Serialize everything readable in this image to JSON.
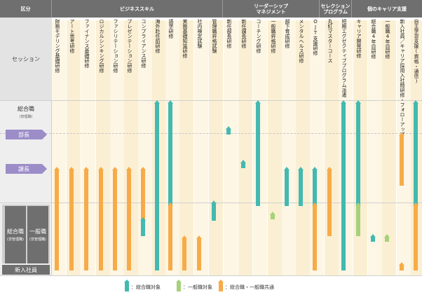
{
  "header": {
    "category": "区分",
    "groups": [
      {
        "id": "business",
        "label": "ビジネススキル"
      },
      {
        "id": "leadership",
        "label": "リーダーシップ\nマネジメント"
      },
      {
        "id": "selection",
        "label": "セレクション\nプログラム"
      },
      {
        "id": "career",
        "label": "個のキャリア支援"
      }
    ]
  },
  "left": {
    "session_label": "セッション",
    "sogo_label": "総合職",
    "sogo_sub": "(管理職)",
    "bucho": "部長",
    "kacho": "課長",
    "sogo_nonmgr": "総合職",
    "sogo_nonmgr_sub": "(非管理職)",
    "ippan": "一般職",
    "ippan_sub": "(非管理職)",
    "shinnyu": "新入社員"
  },
  "courses": [
    {
      "name": "財務モデリング基礎研修",
      "group": "business"
    },
    {
      "name": "アート思考研修",
      "group": "business"
    },
    {
      "name": "ファイナンス基礎研修",
      "group": "business"
    },
    {
      "name": "ロジカルシンキング研修",
      "group": "business"
    },
    {
      "name": "ファシリテーション研修",
      "group": "business"
    },
    {
      "name": "プレゼンテーション研修",
      "group": "business"
    },
    {
      "name": "コンプライアンス研修",
      "group": "business"
    },
    {
      "name": "海外赴任前研修",
      "group": "business"
    },
    {
      "name": "語学研修",
      "group": "business"
    },
    {
      "name": "実務基礎知識研修",
      "group": "business"
    },
    {
      "name": "社内検定試験",
      "group": "business"
    },
    {
      "name": "管理職昇格試験",
      "group": "business"
    },
    {
      "name": "新任部長研修",
      "group": "leadership"
    },
    {
      "name": "新任課長研修",
      "group": "leadership"
    },
    {
      "name": "コーチング研修",
      "group": "leadership"
    },
    {
      "name": "一般職昇格研修",
      "group": "leadership"
    },
    {
      "name": "部下育成研修",
      "group": "leadership"
    },
    {
      "name": "メンタルヘルス研修",
      "group": "leadership"
    },
    {
      "name": "OJT支援研修",
      "group": "leadership"
    },
    {
      "name": "丸紅マスターコース",
      "group": "selection"
    },
    {
      "name": "短期エグゼクティブプログラム派遣",
      "group": "selection"
    },
    {
      "name": "キャリア開発研修",
      "group": "career"
    },
    {
      "name": "総合職4年目研修",
      "group": "career"
    },
    {
      "name": "一般職4年目研修",
      "group": "career"
    },
    {
      "name": "新入社員／キャリア採用入社時研修・フォローアップ",
      "group": "career"
    },
    {
      "name": "自主学習支援(資格・通信)",
      "group": "career"
    }
  ],
  "colors": {
    "teal": "#43b9b0",
    "green": "#a7d17a",
    "orange": "#f7ab48",
    "header_bg": "#6f6f6f",
    "pill": "#9c8dc8"
  },
  "bars": [
    {
      "course": 0,
      "color": "orange",
      "from": "kacho",
      "to": "shinnyu"
    },
    {
      "course": 1,
      "color": "orange",
      "from": "kacho",
      "to": "shinnyu"
    },
    {
      "course": 2,
      "color": "orange",
      "from": "kacho",
      "to": "shinnyu"
    },
    {
      "course": 3,
      "color": "orange",
      "from": "kacho",
      "to": "shinnyu"
    },
    {
      "course": 4,
      "color": "orange",
      "from": "kacho",
      "to": "shinnyu"
    },
    {
      "course": 5,
      "color": "orange",
      "from": "kacho",
      "to": "shinnyu"
    },
    {
      "course": 6,
      "color": "orange",
      "from": "kacho",
      "to": "nonmgr_mid"
    },
    {
      "course": 6,
      "color": "teal",
      "from": "nonmgr_mid",
      "to": "nonmgr_mid2"
    },
    {
      "course": 7,
      "color": "teal",
      "from": "sogo",
      "to": "shinnyu"
    },
    {
      "course": 8,
      "color": "teal",
      "from": "sogo",
      "to": "nonmgr"
    },
    {
      "course": 8,
      "color": "orange",
      "from": "nonmgr",
      "to": "shinnyu"
    },
    {
      "course": 9,
      "color": "orange",
      "from": "nonmgr_low",
      "to": "shinnyu"
    },
    {
      "course": 10,
      "color": "orange",
      "from": "nonmgr_low",
      "to": "shinnyu"
    },
    {
      "course": 11,
      "color": "teal",
      "from": "nonmgr_top",
      "to": "nonmgr_mid"
    },
    {
      "course": 12,
      "color": "teal",
      "from": "bucho_start",
      "to": "bucho_end"
    },
    {
      "course": 13,
      "color": "teal",
      "from": "kacho_start",
      "to": "kacho_end"
    },
    {
      "course": 14,
      "color": "teal",
      "from": "sogo",
      "to": "nonmgr"
    },
    {
      "course": 15,
      "color": "green",
      "from": "green_start",
      "to": "green_end"
    },
    {
      "course": 16,
      "color": "teal",
      "from": "kacho",
      "to": "nonmgr"
    },
    {
      "course": 17,
      "color": "teal",
      "from": "kacho",
      "to": "nonmgr"
    },
    {
      "course": 18,
      "color": "teal",
      "from": "kacho",
      "to": "nonmgr"
    },
    {
      "course": 18,
      "color": "orange",
      "from": "nonmgr",
      "to": "shinnyu"
    },
    {
      "course": 19,
      "color": "orange",
      "from": "kacho",
      "to": "nonmgr_mid2"
    },
    {
      "course": 20,
      "color": "teal",
      "from": "sogo",
      "to": "shinnyu"
    },
    {
      "course": 21,
      "color": "teal",
      "from": "sogo",
      "to": "nonmgr"
    },
    {
      "course": 21,
      "color": "green",
      "from": "nonmgr",
      "to": "nonmgr_mid2"
    },
    {
      "course": 22,
      "color": "teal",
      "from": "four_start",
      "to": "four_end"
    },
    {
      "course": 23,
      "color": "green",
      "from": "four_start",
      "to": "four_end"
    },
    {
      "course": 24,
      "color": "orange",
      "from": "new_top",
      "to": "new_top_end"
    },
    {
      "course": 24,
      "color": "orange",
      "from": "new_bottom",
      "to": "shinnyu"
    },
    {
      "course": 25,
      "color": "teal",
      "from": "sogo",
      "to": "nonmgr"
    },
    {
      "course": 25,
      "color": "orange",
      "from": "nonmgr",
      "to": "shinnyu"
    }
  ],
  "legend": [
    {
      "color": "teal",
      "label": "：総合職対象"
    },
    {
      "color": "green",
      "label": "：一般職対象"
    },
    {
      "color": "orange",
      "label": "：総合職・一般職共通"
    }
  ]
}
